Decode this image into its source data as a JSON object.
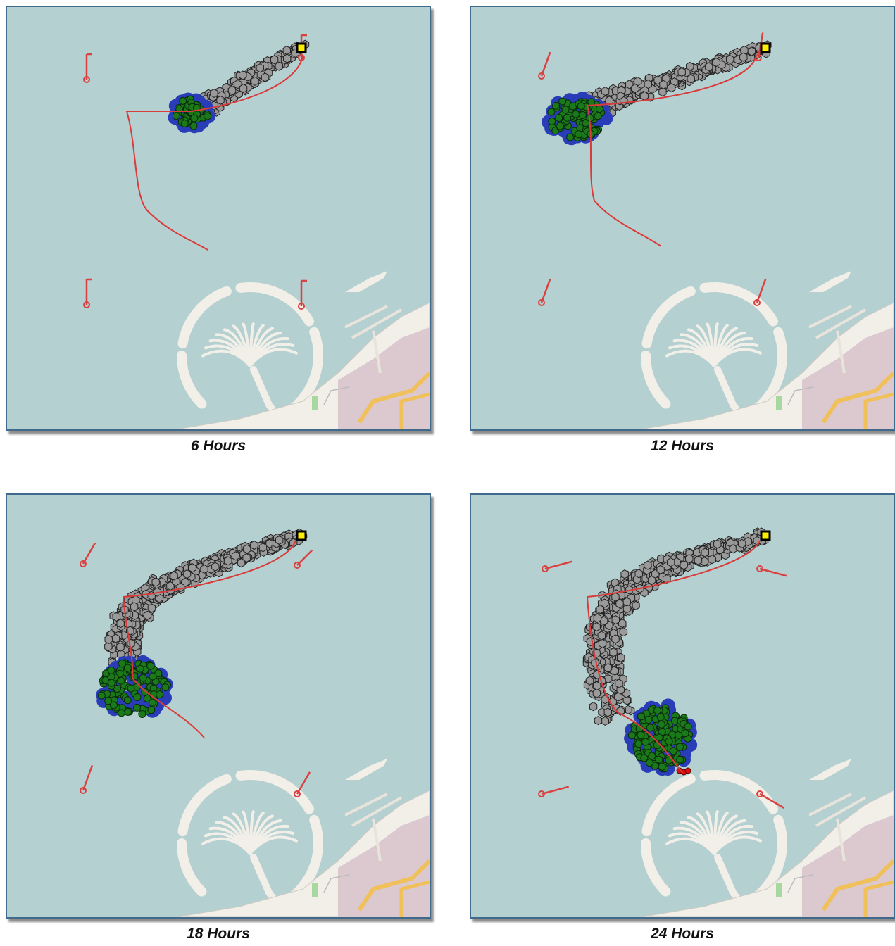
{
  "panels": [
    {
      "id": "p6",
      "caption": "6 Hours",
      "extent": 0.25
    },
    {
      "id": "p12",
      "caption": "12 Hours",
      "extent": 0.5
    },
    {
      "id": "p18",
      "caption": "18 Hours",
      "extent": 0.75
    },
    {
      "id": "p24",
      "caption": "24 Hours",
      "extent": 1.0
    }
  ],
  "legend_colors": {
    "sea": "#b5d0d1",
    "land": "#f2efe9",
    "trajectory": "#d93a3a",
    "released_particle": "#9a9a9a",
    "surface_particle": "#1a7a1a",
    "particle_halo": "#2a3db8",
    "stranded_particle": "#e01010",
    "source": "#ffee00",
    "wind_station": "#d94040"
  }
}
